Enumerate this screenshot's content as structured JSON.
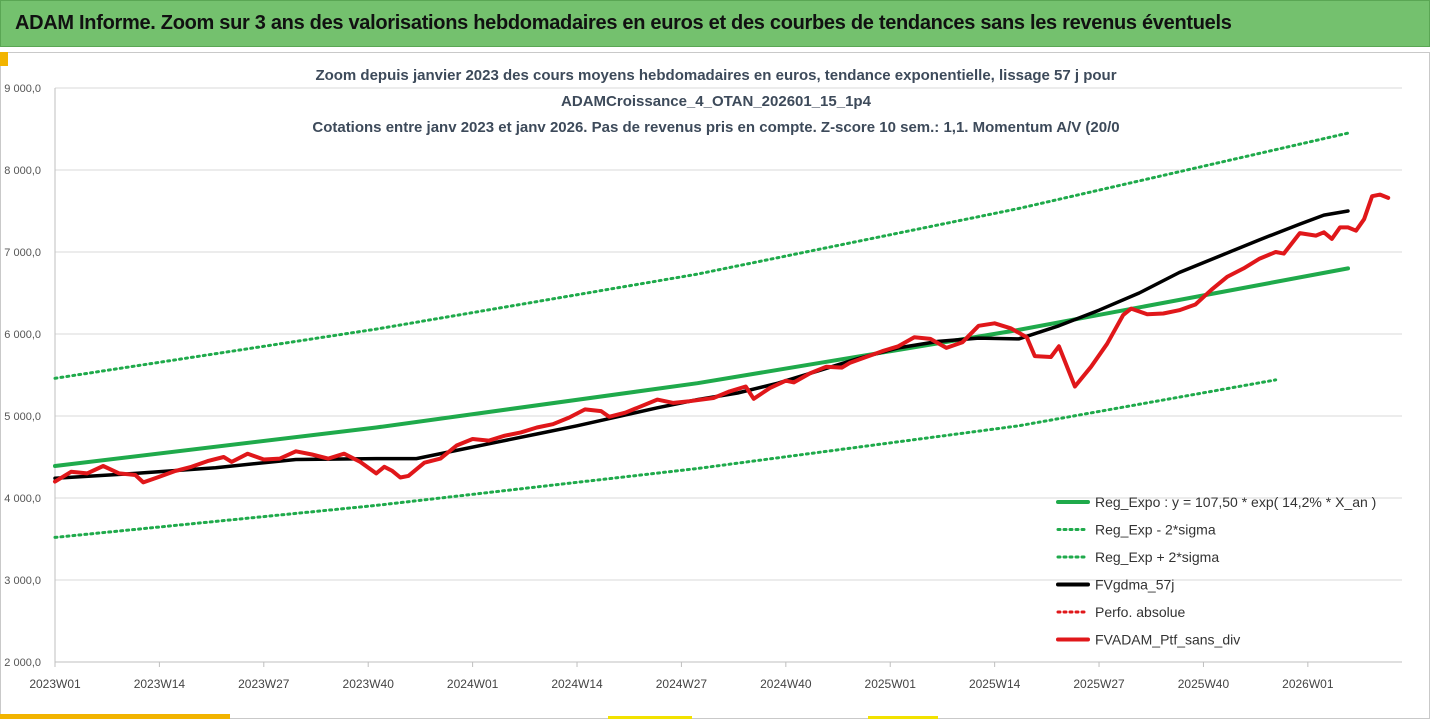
{
  "header": {
    "title": "ADAM Informe. Zoom sur 3 ans des valorisations hebdomadaires en euros et des courbes de tendances sans les revenus éventuels"
  },
  "chart_data": {
    "type": "line",
    "title_lines": [
      "Zoom depuis janvier 2023 des cours moyens hebdomadaires  en euros, tendance exponentielle, lissage 57 j pour",
      "ADAMCroissance_4_OTAN_202601_15_1p4",
      "Cotations entre janv 2023 et janv 2026. Pas de revenus pris en compte. Z-score 10 sem.: 1,1. Momentum A/V (20/0"
    ],
    "x_tick_labels": [
      "2023W01",
      "2023W14",
      "2023W27",
      "2023W40",
      "2024W01",
      "2024W14",
      "2024W27",
      "2024W40",
      "2025W01",
      "2025W14",
      "2025W27",
      "2025W40",
      "2026W01"
    ],
    "y_tick_labels": [
      "2 000,0",
      "3 000,0",
      "4 000,0",
      "5 000,0",
      "6 000,0",
      "7 000,0",
      "8 000,0",
      "9 000,0"
    ],
    "x_range_weeks": [
      0,
      161
    ],
    "ylim": [
      2000,
      9000
    ],
    "grid": "horizontal",
    "legend_position": "bottom-right",
    "series": [
      {
        "name": "Reg_Expo : y = 107,50 * exp( 14,2% *  X_an )",
        "color": "#1faa4b",
        "style": "solid",
        "points": [
          [
            0,
            4390
          ],
          [
            40,
            4860
          ],
          [
            80,
            5400
          ],
          [
            120,
            6050
          ],
          [
            161,
            6800
          ]
        ]
      },
      {
        "name": "Reg_Exp - 2*sigma",
        "color": "#1faa4b",
        "style": "dotted",
        "points": [
          [
            0,
            3520
          ],
          [
            40,
            3910
          ],
          [
            80,
            4360
          ],
          [
            120,
            4880
          ],
          [
            152,
            5440
          ]
        ]
      },
      {
        "name": "Reg_Exp + 2*sigma",
        "color": "#1faa4b",
        "style": "dotted",
        "points": [
          [
            0,
            5460
          ],
          [
            40,
            6060
          ],
          [
            80,
            6730
          ],
          [
            120,
            7530
          ],
          [
            161,
            8450
          ]
        ]
      },
      {
        "name": "FVgdma_57j",
        "color": "#000000",
        "style": "solid",
        "points": [
          [
            0,
            4240
          ],
          [
            10,
            4300
          ],
          [
            20,
            4370
          ],
          [
            30,
            4470
          ],
          [
            40,
            4480
          ],
          [
            45,
            4480
          ],
          [
            50,
            4580
          ],
          [
            55,
            4680
          ],
          [
            60,
            4780
          ],
          [
            65,
            4880
          ],
          [
            70,
            4990
          ],
          [
            75,
            5100
          ],
          [
            80,
            5200
          ],
          [
            85,
            5280
          ],
          [
            90,
            5400
          ],
          [
            95,
            5550
          ],
          [
            100,
            5700
          ],
          [
            105,
            5830
          ],
          [
            110,
            5910
          ],
          [
            115,
            5950
          ],
          [
            120,
            5940
          ],
          [
            125,
            6100
          ],
          [
            130,
            6290
          ],
          [
            135,
            6500
          ],
          [
            140,
            6750
          ],
          [
            145,
            6950
          ],
          [
            150,
            7150
          ],
          [
            155,
            7340
          ],
          [
            158,
            7450
          ],
          [
            161,
            7500
          ]
        ]
      },
      {
        "name": "Perfo. absolue",
        "color": "#e0171a",
        "style": "dotted",
        "points": []
      },
      {
        "name": "FVADAM_Ptf_sans_div",
        "color": "#e0171a",
        "style": "solid",
        "points": [
          [
            0,
            4200
          ],
          [
            2,
            4320
          ],
          [
            4,
            4300
          ],
          [
            6,
            4390
          ],
          [
            8,
            4300
          ],
          [
            10,
            4280
          ],
          [
            11,
            4190
          ],
          [
            13,
            4260
          ],
          [
            15,
            4330
          ],
          [
            17,
            4380
          ],
          [
            19,
            4450
          ],
          [
            21,
            4500
          ],
          [
            22,
            4440
          ],
          [
            24,
            4540
          ],
          [
            26,
            4470
          ],
          [
            28,
            4480
          ],
          [
            30,
            4570
          ],
          [
            32,
            4530
          ],
          [
            34,
            4480
          ],
          [
            36,
            4540
          ],
          [
            38,
            4440
          ],
          [
            40,
            4300
          ],
          [
            41,
            4380
          ],
          [
            42,
            4330
          ],
          [
            43,
            4250
          ],
          [
            44,
            4270
          ],
          [
            46,
            4430
          ],
          [
            48,
            4480
          ],
          [
            50,
            4640
          ],
          [
            52,
            4720
          ],
          [
            54,
            4700
          ],
          [
            56,
            4760
          ],
          [
            58,
            4800
          ],
          [
            60,
            4860
          ],
          [
            62,
            4900
          ],
          [
            64,
            4980
          ],
          [
            66,
            5080
          ],
          [
            68,
            5060
          ],
          [
            69,
            4990
          ],
          [
            71,
            5040
          ],
          [
            73,
            5120
          ],
          [
            75,
            5200
          ],
          [
            77,
            5160
          ],
          [
            79,
            5180
          ],
          [
            82,
            5220
          ],
          [
            84,
            5300
          ],
          [
            86,
            5360
          ],
          [
            87,
            5210
          ],
          [
            89,
            5340
          ],
          [
            91,
            5430
          ],
          [
            92,
            5410
          ],
          [
            94,
            5520
          ],
          [
            96,
            5600
          ],
          [
            98,
            5590
          ],
          [
            99,
            5650
          ],
          [
            101,
            5720
          ],
          [
            103,
            5790
          ],
          [
            105,
            5850
          ],
          [
            107,
            5960
          ],
          [
            109,
            5940
          ],
          [
            111,
            5830
          ],
          [
            113,
            5900
          ],
          [
            115,
            6100
          ],
          [
            117,
            6130
          ],
          [
            119,
            6070
          ],
          [
            121,
            5960
          ],
          [
            122,
            5730
          ],
          [
            124,
            5720
          ],
          [
            125,
            5850
          ],
          [
            127,
            5360
          ],
          [
            129,
            5600
          ],
          [
            131,
            5880
          ],
          [
            133,
            6230
          ],
          [
            134,
            6310
          ],
          [
            136,
            6240
          ],
          [
            138,
            6250
          ],
          [
            140,
            6290
          ],
          [
            142,
            6360
          ],
          [
            144,
            6540
          ],
          [
            146,
            6700
          ],
          [
            148,
            6800
          ],
          [
            150,
            6920
          ],
          [
            152,
            7000
          ],
          [
            153,
            6980
          ],
          [
            155,
            7230
          ],
          [
            157,
            7200
          ],
          [
            158,
            7240
          ],
          [
            159,
            7160
          ],
          [
            160,
            7300
          ],
          [
            161,
            7300
          ],
          [
            162,
            7260
          ],
          [
            163,
            7400
          ],
          [
            164,
            7680
          ],
          [
            165,
            7700
          ],
          [
            166,
            7660
          ]
        ]
      }
    ]
  }
}
